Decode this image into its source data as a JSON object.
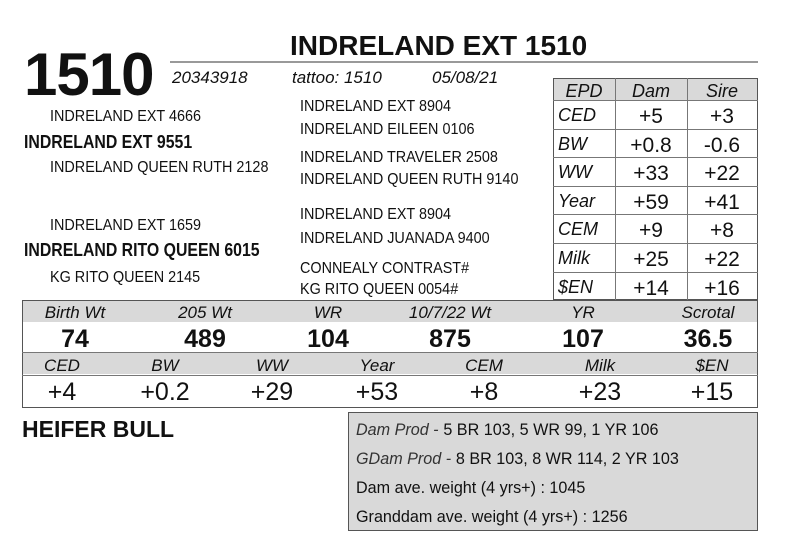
{
  "lot": "1510",
  "title": "INDRELAND EXT 1510",
  "registration": "20343918",
  "tattoo": "tattoo: 1510",
  "birth_date": "05/08/21",
  "pedigree": {
    "sire": "INDRELAND EXT 9551",
    "sire_sire": "INDRELAND EXT 4666",
    "sire_dam": "INDRELAND QUEEN RUTH 2128",
    "dam": "INDRELAND RITO QUEEN 6015",
    "dam_sire": "INDRELAND EXT 1659",
    "dam_dam": "KG RITO QUEEN 2145",
    "third_generation": [
      "INDRELAND EXT 8904",
      "INDRELAND EILEEN 0106",
      "INDRELAND TRAVELER 2508",
      "INDRELAND QUEEN RUTH 9140",
      "INDRELAND EXT 8904",
      "INDRELAND JUANADA 9400",
      "CONNEALY CONTRAST#",
      "KG RITO QUEEN 0054#"
    ]
  },
  "parent_epds": {
    "header": [
      "EPD",
      "Dam",
      "Sire"
    ],
    "rows": [
      [
        "CED",
        "+5",
        "+3"
      ],
      [
        "BW",
        "+0.8",
        "-0.6"
      ],
      [
        "WW",
        "+33",
        "+22"
      ],
      [
        "Year",
        "+59",
        "+41"
      ],
      [
        "CEM",
        "+9",
        "+8"
      ],
      [
        "Milk",
        "+25",
        "+22"
      ],
      [
        "$EN",
        "+14",
        "+16"
      ]
    ]
  },
  "performance": {
    "header": [
      "Birth Wt",
      "205 Wt",
      "WR",
      "10/7/22 Wt",
      "YR",
      "Scrotal"
    ],
    "values": [
      "74",
      "489",
      "104",
      "875",
      "107",
      "36.5"
    ]
  },
  "epds": {
    "header": [
      "CED",
      "BW",
      "WW",
      "Year",
      "CEM",
      "Milk",
      "$EN"
    ],
    "values": [
      "+4",
      "+0.2",
      "+29",
      "+53",
      "+8",
      "+23",
      "+15"
    ]
  },
  "label": "HEIFER BULL",
  "notes": [
    {
      "prefix": "Dam Prod -",
      "text": "5 BR 103, 5 WR 99, 1 YR 106"
    },
    {
      "prefix": "GDam Prod -",
      "text": "8 BR 103, 8 WR 114, 2 YR 103"
    },
    {
      "text": "Dam ave. weight (4 yrs+) : 1045"
    },
    {
      "text": "Granddam ave. weight (4 yrs+) : 1256"
    }
  ]
}
